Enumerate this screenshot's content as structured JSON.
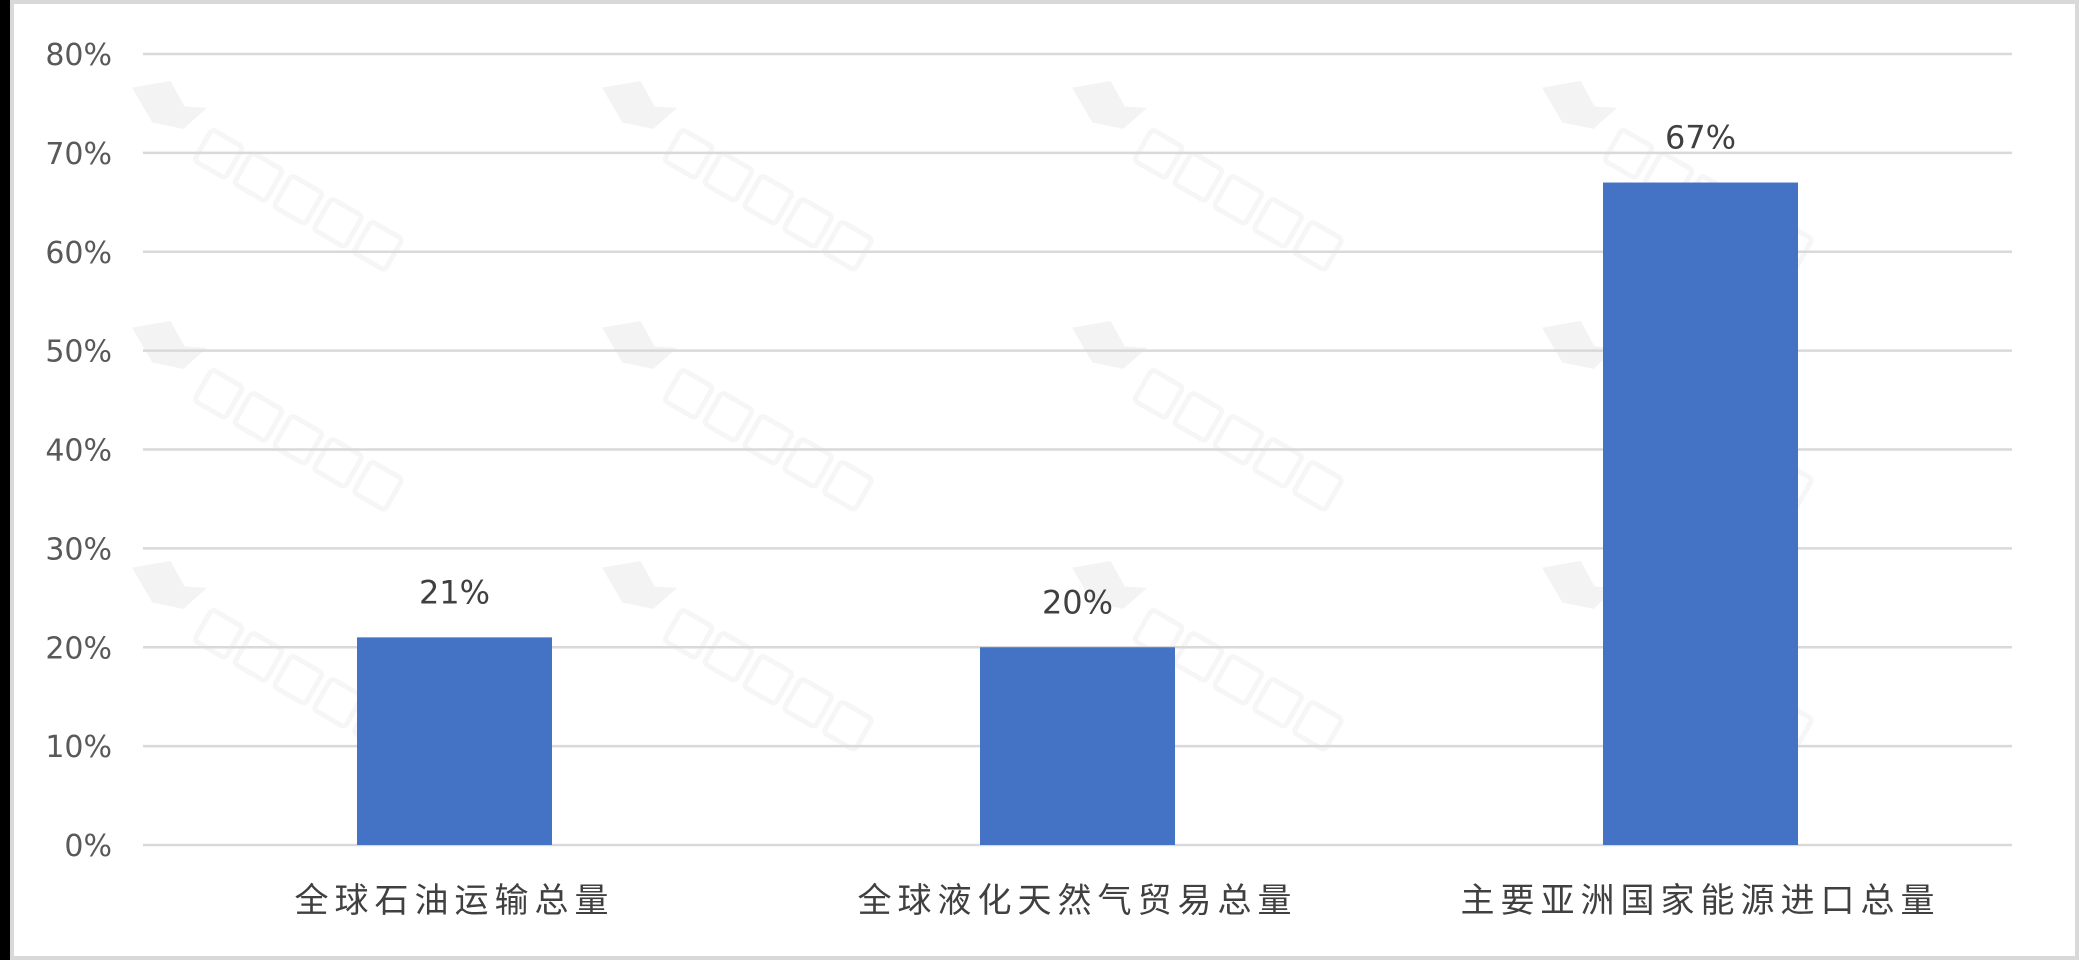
{
  "chart_data": {
    "type": "bar",
    "categories": [
      "全球石油运输总量",
      "全球液化天然气贸易总量",
      "主要亚洲国家能源进口总量"
    ],
    "values": [
      21,
      20,
      67
    ],
    "data_labels": [
      "21%",
      "20%",
      "67%"
    ],
    "ylim": [
      0,
      80
    ],
    "yticks": [
      "0%",
      "10%",
      "20%",
      "30%",
      "40%",
      "50%",
      "60%",
      "70%",
      "80%"
    ],
    "grid": true,
    "bar_color": "#4472c4",
    "watermark": "化工平头哥"
  }
}
